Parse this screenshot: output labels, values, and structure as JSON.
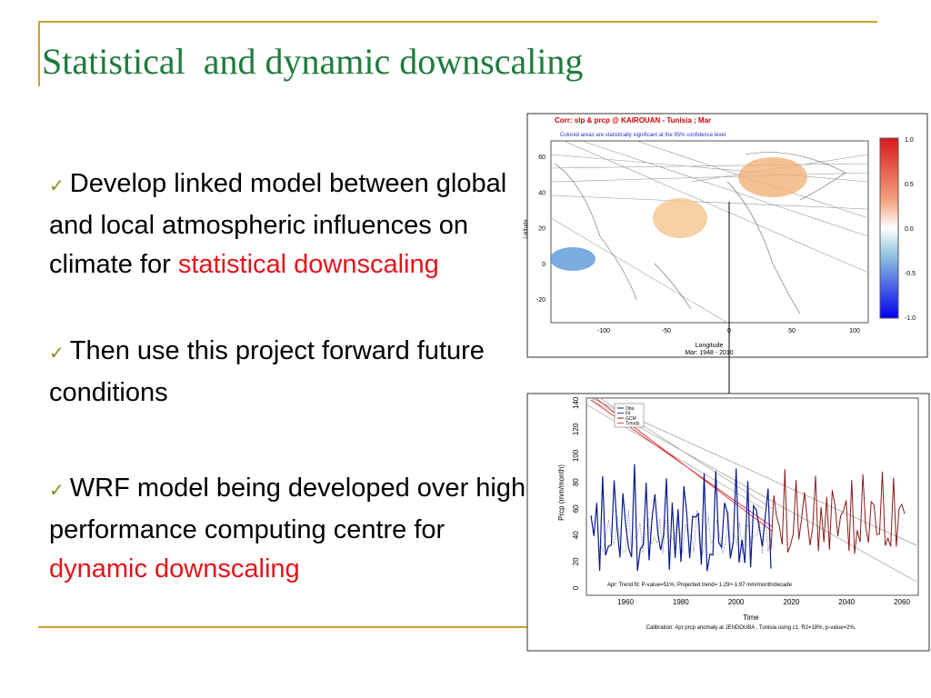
{
  "title": "Statistical  and dynamic downscaling",
  "bullet_marker": "✓",
  "bullets": [
    {
      "text": "Develop linked model between global and local atmospheric influences on climate for ",
      "highlight": "statistical downscaling"
    },
    {
      "text": "Then use this project forward future conditions"
    },
    {
      "text": "WRF model being developed over high-performance computing centre for ",
      "highlight": "dynamic downscaling"
    }
  ],
  "map": {
    "title": "Corr: slp & prcp @ KAIROUAN - Tunisia ;  Mar",
    "subtitle": "Colored areas are statistically significant at the 95% confidence level",
    "ylabel": "Latitude",
    "xlabel": "Longitude",
    "period": "Mar: 1948 - 2010",
    "yticks": [
      "60",
      "40",
      "20",
      "0",
      "-20"
    ],
    "xticks": [
      "-100",
      "-50",
      "0",
      "50",
      "100"
    ],
    "colorbar_ticks": [
      "1.0",
      "0.5",
      "0.0",
      "-0.5",
      "-1.0"
    ]
  },
  "timeseries": {
    "ylabel": "Prcp (mm/month)",
    "xlabel": "Time",
    "yticks": [
      "0",
      "20",
      "40",
      "60",
      "80",
      "100",
      "120",
      "140"
    ],
    "xticks": [
      "1960",
      "1980",
      "2000",
      "2020",
      "2040",
      "2060"
    ],
    "legend": [
      "Obs.",
      "Fit",
      "GCM",
      "Trends"
    ],
    "note": "Apr: Trend fit: P-value=51%; Projected trend= 1.29+-1.97 mm/month/decade",
    "caption": "Calibration: Apr prcp anomaly at JENDOUBA , Tunisia using c1: R2=18%, p-value=2%."
  }
}
